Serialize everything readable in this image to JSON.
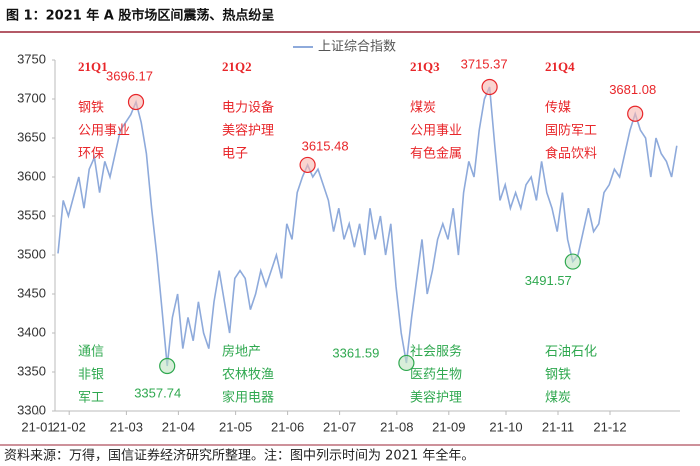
{
  "chart_data": {
    "type": "line",
    "title": "图 1：2021 年 A 股市场区间震荡、热点纷呈",
    "source": "资料来源：万得，国信证券经济研究所整理。注：图中列示时间为 2021 年全年。",
    "categories": [
      "21-01",
      null,
      null,
      null,
      null,
      null,
      "21-02",
      null,
      null,
      null,
      null,
      null,
      null,
      null,
      null,
      null,
      null,
      "21-03",
      null,
      null,
      null,
      null,
      null,
      null,
      null,
      null,
      null,
      "21-04",
      null,
      null,
      null,
      null,
      null,
      null,
      null,
      null,
      null,
      null,
      "21-05",
      null,
      null,
      null,
      null,
      null,
      null,
      null,
      null,
      null,
      "21-06",
      null,
      null,
      null,
      null,
      null,
      null,
      null,
      null,
      null,
      "21-07",
      null,
      null,
      null,
      null,
      null,
      null,
      null,
      null,
      null,
      null,
      "21-08",
      null,
      null,
      null,
      null,
      null,
      null,
      null,
      null,
      null,
      "21-09",
      null,
      null,
      null,
      null,
      null,
      null,
      null,
      null,
      null,
      null,
      "21-10",
      null,
      null,
      null,
      null,
      null,
      null,
      null,
      null,
      null,
      "21-11",
      null,
      null,
      null,
      null,
      null,
      null,
      null,
      null,
      null,
      "21-12",
      null,
      null,
      null,
      null,
      null,
      null,
      null,
      null,
      null
    ],
    "series": [
      {
        "name": "上证综合指数",
        "color": "#8eaadb",
        "values": [
          3502,
          3570,
          3550,
          3575,
          3600,
          3560,
          3610,
          3625,
          3580,
          3620,
          3600,
          3630,
          3660,
          3670,
          3680,
          3696.17,
          3670,
          3630,
          3560,
          3500,
          3430,
          3357.74,
          3420,
          3450,
          3380,
          3420,
          3390,
          3440,
          3400,
          3380,
          3440,
          3480,
          3440,
          3400,
          3470,
          3480,
          3470,
          3430,
          3450,
          3480,
          3460,
          3480,
          3500,
          3470,
          3540,
          3520,
          3580,
          3600,
          3615.48,
          3600,
          3610,
          3590,
          3570,
          3530,
          3560,
          3520,
          3540,
          3510,
          3540,
          3500,
          3560,
          3520,
          3550,
          3500,
          3540,
          3460,
          3400,
          3361.59,
          3420,
          3470,
          3520,
          3450,
          3480,
          3520,
          3540,
          3520,
          3560,
          3500,
          3580,
          3620,
          3600,
          3660,
          3700,
          3715.37,
          3640,
          3570,
          3590,
          3560,
          3580,
          3560,
          3590,
          3600,
          3570,
          3620,
          3580,
          3560,
          3530,
          3580,
          3520,
          3491.57,
          3500,
          3530,
          3560,
          3530,
          3540,
          3580,
          3590,
          3610,
          3600,
          3630,
          3660,
          3681.08,
          3660,
          3650,
          3600,
          3650,
          3630,
          3620,
          3600,
          3640
        ]
      }
    ],
    "ylim": [
      3300,
      3750
    ],
    "yticks": [
      3300,
      3350,
      3400,
      3450,
      3500,
      3550,
      3600,
      3650,
      3700,
      3750
    ],
    "grid": false,
    "legend": "top",
    "quarters": [
      "21Q1",
      "21Q2",
      "21Q3",
      "21Q4"
    ],
    "top_sectors": [
      [
        "钢铁",
        "公用事业",
        "环保"
      ],
      [
        "电力设备",
        "美容护理",
        "电子"
      ],
      [
        "煤炭",
        "公用事业",
        "有色金属"
      ],
      [
        "传媒",
        "国防军工",
        "食品饮料"
      ]
    ],
    "bottom_sectors": [
      [
        "通信",
        "非银",
        "军工"
      ],
      [
        "房地产",
        "农林牧渔",
        "家用电器"
      ],
      [
        "社会服务",
        "医药生物",
        "美容护理"
      ],
      [
        "石油石化",
        "钢铁",
        "煤炭"
      ]
    ],
    "top_color": "#e8262a",
    "bottom_color": "#2fa84f"
  }
}
